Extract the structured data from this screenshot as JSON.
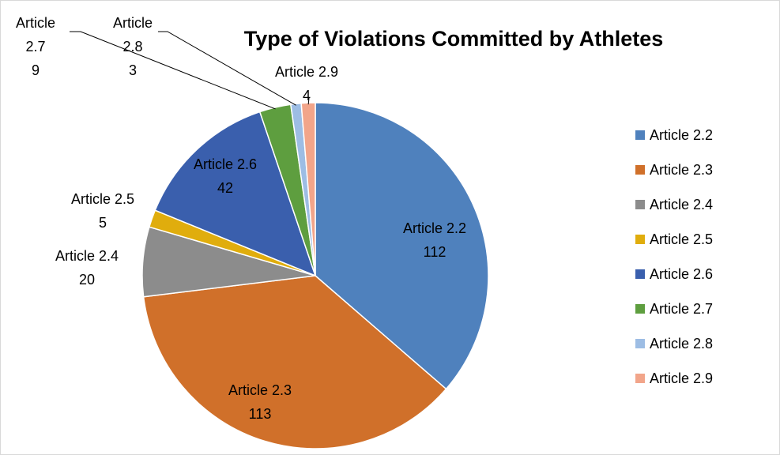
{
  "chart_data": {
    "type": "pie",
    "title": "Type of Violations Committed by Athletes",
    "categories": [
      "Article 2.2",
      "Article 2.3",
      "Article 2.4",
      "Article 2.5",
      "Article 2.6",
      "Article 2.7",
      "Article 2.8",
      "Article 2.9"
    ],
    "values": [
      112,
      113,
      20,
      5,
      42,
      9,
      3,
      4
    ],
    "colors": [
      "#4f81bd",
      "#d0702a",
      "#8c8c8c",
      "#e0ad0d",
      "#3a5fad",
      "#5e9e3f",
      "#9dbde4",
      "#f2a58a"
    ],
    "legend_position": "right",
    "data_labels": [
      {
        "name": "Article 2.2",
        "value": "112"
      },
      {
        "name": "Article 2.3",
        "value": "113"
      },
      {
        "name": "Article 2.4",
        "value": "20"
      },
      {
        "name": "Article 2.5",
        "value": "5"
      },
      {
        "name": "Article 2.6",
        "value": "42"
      },
      {
        "name": "Article 2.7",
        "value": "9"
      },
      {
        "name": "Article 2.8",
        "value": "3"
      },
      {
        "name": "Article 2.9",
        "value": "4"
      }
    ]
  }
}
